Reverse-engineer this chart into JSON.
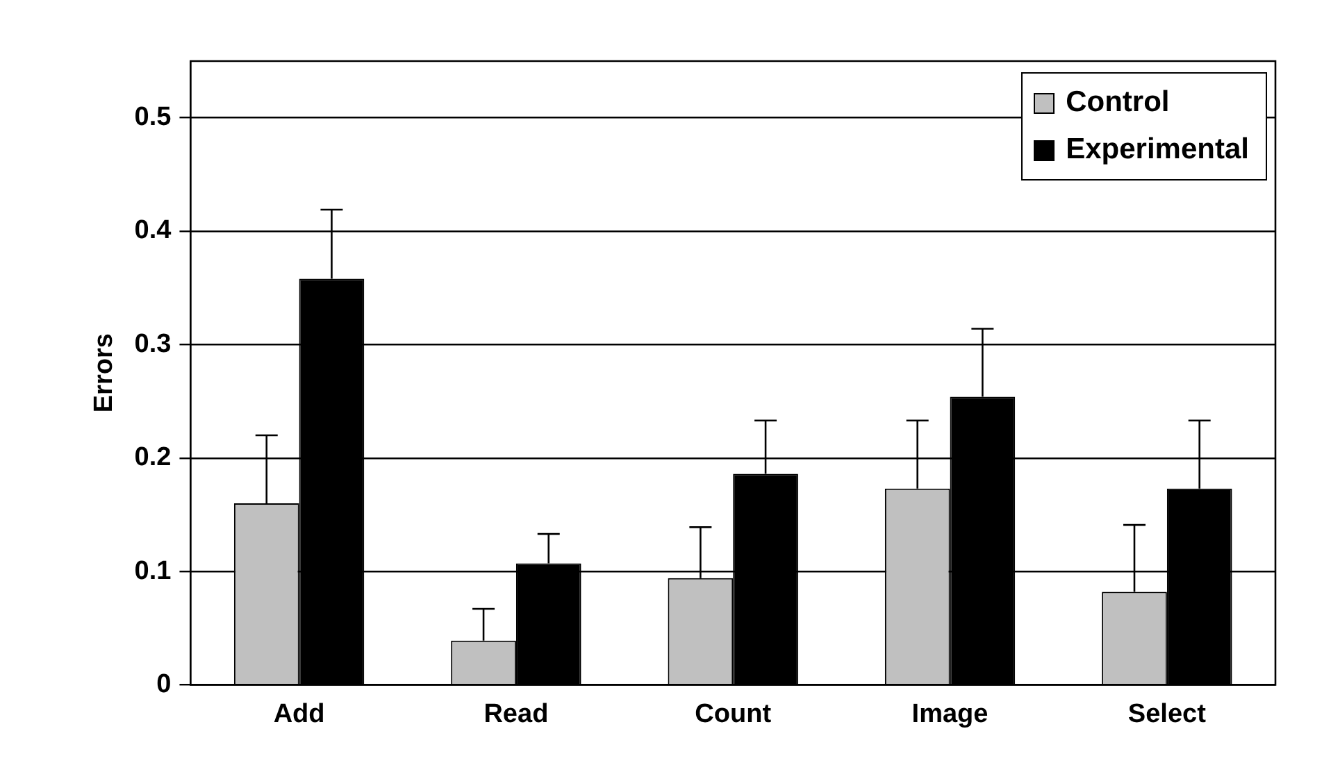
{
  "chart_data": {
    "type": "bar",
    "ylabel": "Errors",
    "categories": [
      "Add",
      "Read",
      "Count",
      "Image",
      "Select"
    ],
    "series": [
      {
        "name": "Control",
        "color": "#c0c0c0",
        "values": [
          0.16,
          0.039,
          0.094,
          0.173,
          0.082
        ],
        "errors": [
          [
            0.16,
            0.22
          ],
          [
            0.039,
            0.067
          ],
          [
            0.094,
            0.139
          ],
          [
            0.173,
            0.233
          ],
          [
            0.082,
            0.141
          ]
        ]
      },
      {
        "name": "Experimental",
        "color": "#000000",
        "values": [
          0.358,
          0.107,
          0.186,
          0.254,
          0.173
        ],
        "errors": [
          [
            0.358,
            0.419
          ],
          [
            0.107,
            0.133
          ],
          [
            0.186,
            0.233
          ],
          [
            0.254,
            0.314
          ],
          [
            0.173,
            0.233
          ]
        ]
      }
    ],
    "ylim": [
      0,
      0.55
    ],
    "yticks": [
      0,
      0.1,
      0.2,
      0.3,
      0.4,
      0.5
    ],
    "grid": "y",
    "legend": "top right"
  }
}
